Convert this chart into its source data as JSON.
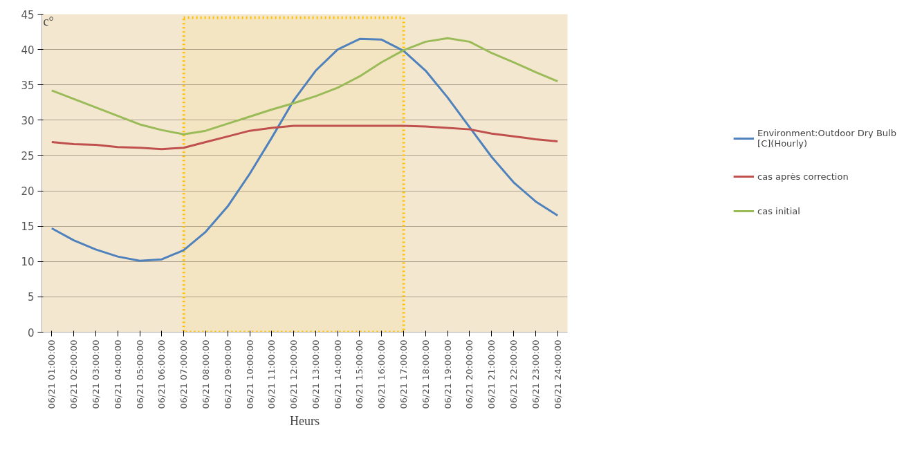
{
  "chart_data": {
    "type": "line",
    "ylabel": "c°",
    "xlabel": "Heurs",
    "categories": [
      "06/21 01:00:00",
      "06/21 02:00:00",
      "06/21 03:00:00",
      "06/21 04:00:00",
      "06/21 05:00:00",
      "06/21 06:00:00",
      "06/21 07:00:00",
      "06/21 08:00:00",
      "06/21 09:00:00",
      "06/21 10:00:00",
      "06/21 11:00:00",
      "06/21 12:00:00",
      "06/21 13:00:00",
      "06/21 14:00:00",
      "06/21 15:00:00",
      "06/21 16:00:00",
      "06/21 17:00:00",
      "06/21 18:00:00",
      "06/21 19:00:00",
      "06/21 20:00:00",
      "06/21 21:00:00",
      "06/21 22:00:00",
      "06/21 23:00:00",
      "06/21 24:00:00"
    ],
    "series": [
      {
        "name": "Environment:Outdoor Dry Bulb [C](Hourly)",
        "color": "#4f81bd",
        "values": [
          14.7,
          13.0,
          11.7,
          10.7,
          10.1,
          10.3,
          11.6,
          14.2,
          17.8,
          22.4,
          27.5,
          32.8,
          37.0,
          40.0,
          41.5,
          41.4,
          39.8,
          37.0,
          33.2,
          29.0,
          24.8,
          21.2,
          18.5,
          16.5
        ]
      },
      {
        "name": "cas après correction",
        "color": "#c0504d",
        "values": [
          26.9,
          26.6,
          26.5,
          26.2,
          26.1,
          25.9,
          26.1,
          26.9,
          27.7,
          28.5,
          28.9,
          29.2,
          29.2,
          29.2,
          29.2,
          29.2,
          29.2,
          29.1,
          28.9,
          28.7,
          28.1,
          27.7,
          27.3,
          27.0
        ]
      },
      {
        "name": "cas initial",
        "color": "#9bbb59",
        "values": [
          34.2,
          33.0,
          31.8,
          30.6,
          29.4,
          28.6,
          28.0,
          28.5,
          29.5,
          30.5,
          31.5,
          32.4,
          33.4,
          34.6,
          36.2,
          38.2,
          39.9,
          41.1,
          41.6,
          41.1,
          39.5,
          38.2,
          36.8,
          35.5
        ]
      }
    ],
    "ylim": [
      0,
      45
    ],
    "yticks": [
      0,
      5,
      10,
      15,
      20,
      25,
      30,
      35,
      40,
      45
    ],
    "grid": "y",
    "legend": "right",
    "line_style": "solid",
    "bands": [
      {
        "axis": "x",
        "from": "06/21 07:00:00",
        "to": "06/21 17:00:00",
        "color": "#ffc000"
      }
    ]
  }
}
